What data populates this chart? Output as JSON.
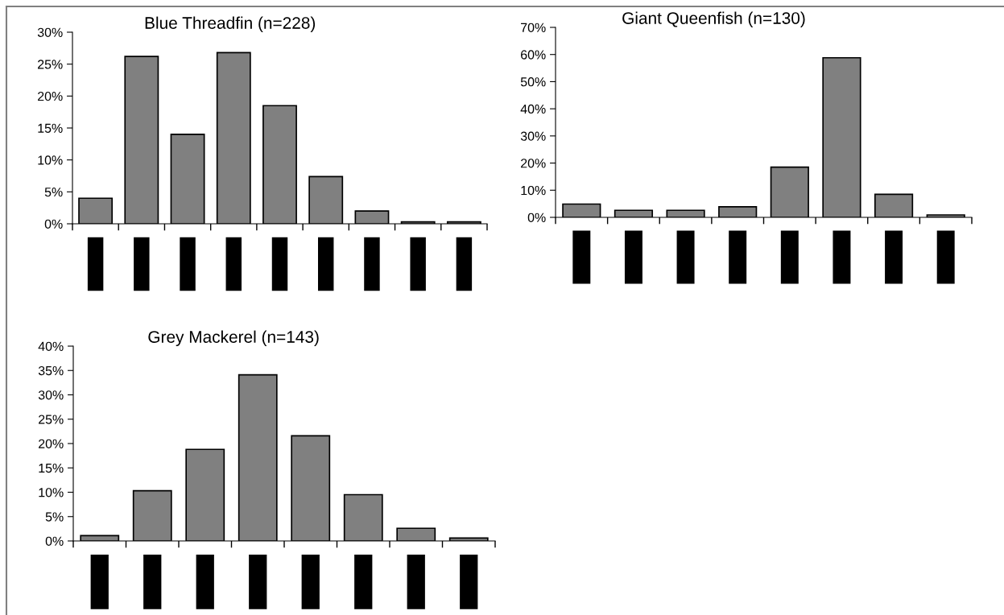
{
  "chart_data": [
    {
      "type": "bar",
      "title": "Blue Threadfin (n=228)",
      "categories": [
        null,
        null,
        null,
        null,
        null,
        null,
        null,
        null,
        null
      ],
      "values": [
        4.0,
        26.2,
        14.0,
        26.8,
        18.5,
        7.4,
        2.0,
        0.3,
        0.3
      ],
      "color": "#808080",
      "ylim": [
        0,
        30
      ],
      "yticks": [
        {
          "value": 0,
          "label": "0%"
        },
        {
          "value": 5,
          "label": "5%"
        },
        {
          "value": 10,
          "label": "10%"
        },
        {
          "value": 15,
          "label": "15%"
        },
        {
          "value": 20,
          "label": "20%"
        },
        {
          "value": 25,
          "label": "25%"
        },
        {
          "value": 30,
          "label": "30%"
        }
      ],
      "grid": false
    },
    {
      "type": "bar",
      "title": "Giant Queenfish (n=130)",
      "categories": [
        null,
        null,
        null,
        null,
        null,
        null,
        null,
        null
      ],
      "values": [
        4.9,
        2.6,
        2.6,
        3.9,
        18.5,
        58.8,
        8.5,
        0.9
      ],
      "color": "#808080",
      "ylim": [
        0,
        70
      ],
      "yticks": [
        {
          "value": 0,
          "label": "0%"
        },
        {
          "value": 10,
          "label": "10%"
        },
        {
          "value": 20,
          "label": "20%"
        },
        {
          "value": 30,
          "label": "30%"
        },
        {
          "value": 40,
          "label": "40%"
        },
        {
          "value": 50,
          "label": "50%"
        },
        {
          "value": 60,
          "label": "60%"
        },
        {
          "value": 70,
          "label": "70%"
        }
      ],
      "grid": false
    },
    {
      "type": "bar",
      "title": "Grey Mackerel (n=143)",
      "categories": [
        null,
        null,
        null,
        null,
        null,
        null,
        null,
        null
      ],
      "values": [
        1.1,
        10.3,
        18.8,
        34.1,
        21.6,
        9.5,
        2.6,
        0.6
      ],
      "color": "#808080",
      "ylim": [
        0,
        40
      ],
      "yticks": [
        {
          "value": 0,
          "label": "0%"
        },
        {
          "value": 5,
          "label": "5%"
        },
        {
          "value": 10,
          "label": "10%"
        },
        {
          "value": 15,
          "label": "15%"
        },
        {
          "value": 20,
          "label": "20%"
        },
        {
          "value": 25,
          "label": "25%"
        },
        {
          "value": 30,
          "label": "30%"
        },
        {
          "value": 35,
          "label": "35%"
        },
        {
          "value": 40,
          "label": "40%"
        }
      ],
      "grid": false
    }
  ]
}
